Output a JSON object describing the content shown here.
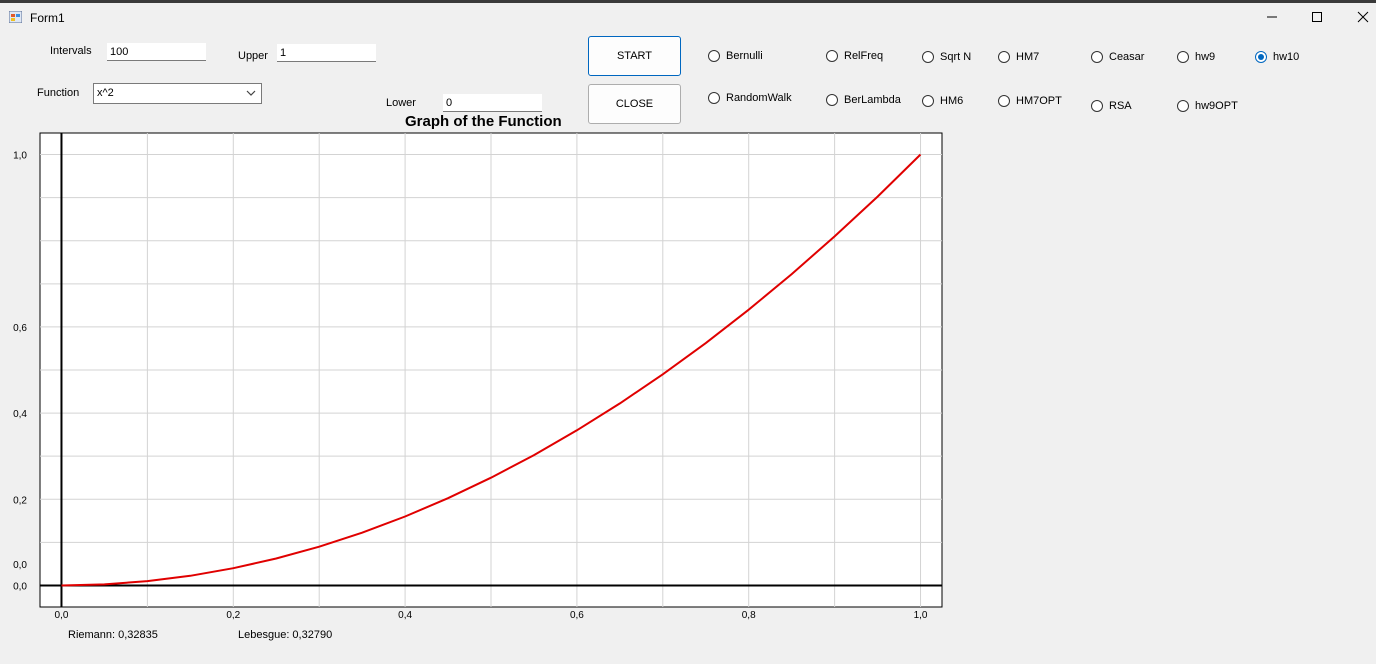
{
  "window": {
    "title": "Form1"
  },
  "form": {
    "intervals_label": "Intervals",
    "intervals_value": "100",
    "upper_label": "Upper",
    "upper_value": "1",
    "lower_label": "Lower",
    "lower_value": "0",
    "function_label": "Function",
    "function_value": "x^2",
    "start_label": "START",
    "close_label": "CLOSE"
  },
  "radios": [
    {
      "label": "Bernulli",
      "checked": false
    },
    {
      "label": "RelFreq",
      "checked": false
    },
    {
      "label": "Sqrt N",
      "checked": false
    },
    {
      "label": "HM7",
      "checked": false
    },
    {
      "label": "Ceasar",
      "checked": false
    },
    {
      "label": "hw9",
      "checked": false
    },
    {
      "label": "hw10",
      "checked": true
    },
    {
      "label": "RandomWalk",
      "checked": false
    },
    {
      "label": "BerLambda",
      "checked": false
    },
    {
      "label": "HM6",
      "checked": false
    },
    {
      "label": "HM7OPT",
      "checked": false
    },
    {
      "label": "RSA",
      "checked": false
    },
    {
      "label": "hw9OPT",
      "checked": false
    }
  ],
  "chart_data": {
    "type": "line",
    "title": "Graph of the Function",
    "xlabel": "",
    "ylabel": "",
    "xlim": [
      -0.025,
      1.025
    ],
    "ylim": [
      -0.05,
      1.05
    ],
    "x_ticks": [
      "0,0",
      "0,2",
      "0,4",
      "0,6",
      "0,8",
      "1,0"
    ],
    "y_ticks": [
      "1,0",
      "0,6",
      "0,4",
      "0,2",
      "0,0",
      "0,0"
    ],
    "grid": true,
    "series": [
      {
        "color": "#e00000",
        "x": [
          0,
          0.05,
          0.1,
          0.15,
          0.2,
          0.25,
          0.3,
          0.35,
          0.4,
          0.45,
          0.5,
          0.55,
          0.6,
          0.65,
          0.7,
          0.75,
          0.8,
          0.85,
          0.9,
          0.95,
          1.0
        ],
        "y": [
          0,
          0.0025,
          0.01,
          0.0225,
          0.04,
          0.0625,
          0.09,
          0.1225,
          0.16,
          0.2025,
          0.25,
          0.3025,
          0.36,
          0.4225,
          0.49,
          0.5625,
          0.64,
          0.7225,
          0.81,
          0.9025,
          1.0
        ]
      }
    ]
  },
  "results": {
    "riemann": "Riemann: 0,32835",
    "lebesgue": "Lebesgue: 0,32790"
  },
  "icons": {
    "minimize": "minimize-icon",
    "maximize": "maximize-icon",
    "close": "close-icon"
  }
}
